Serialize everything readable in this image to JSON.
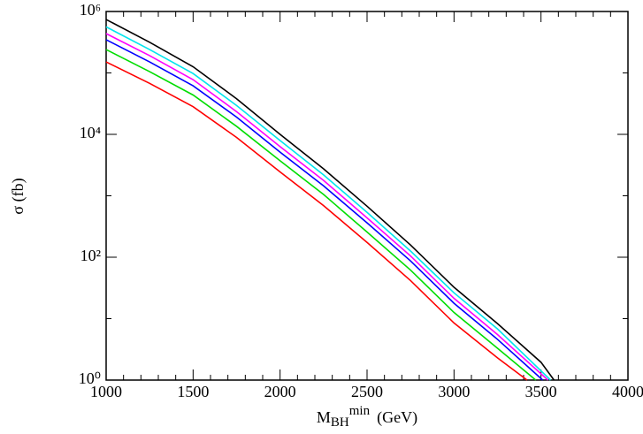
{
  "chart_data": {
    "type": "line",
    "ylabel": "σ (fb)",
    "xlabel": {
      "base": "M",
      "sub": "BH",
      "sup": "min",
      "unit": "(GeV)"
    },
    "xlim": [
      1000,
      4000
    ],
    "xticks": [
      1000,
      1500,
      2000,
      2500,
      3000,
      3500,
      4000
    ],
    "xminorticks": [
      1100,
      1200,
      1300,
      1400,
      1600,
      1700,
      1800,
      1900,
      2100,
      2200,
      2300,
      2400,
      2600,
      2700,
      2800,
      2900,
      3100,
      3200,
      3300,
      3400,
      3600,
      3700,
      3800,
      3900
    ],
    "ylim": [
      1,
      1000000
    ],
    "log_y": true,
    "yticks": [
      {
        "value": 1,
        "label": "10⁰"
      },
      {
        "value": 100,
        "label": "10²"
      },
      {
        "value": 10000,
        "label": "10⁴"
      },
      {
        "value": 1000000,
        "label": "10⁶"
      }
    ],
    "yminorticks": [
      10,
      1000,
      100000
    ],
    "series": [
      {
        "color": "#000000",
        "x": [
          1000,
          1250,
          1500,
          1750,
          2000,
          2250,
          2500,
          2750,
          3000,
          3250,
          3500,
          3575
        ],
        "values": [
          741000,
          316000,
          126000,
          38000,
          10000,
          2750,
          676,
          158,
          32.4,
          8.3,
          1.95,
          1
        ]
      },
      {
        "color": "#00e5ee",
        "x": [
          1000,
          1250,
          1500,
          1750,
          2000,
          2250,
          2500,
          2750,
          3000,
          3250,
          3555
        ],
        "values": [
          562000,
          240000,
          97700,
          29500,
          7940,
          2190,
          537,
          126,
          26.3,
          6.8,
          1
        ]
      },
      {
        "color": "#ff00ff",
        "x": [
          1000,
          1250,
          1500,
          1750,
          2000,
          2250,
          2500,
          2750,
          3000,
          3250,
          3540
        ],
        "values": [
          437000,
          191000,
          77600,
          23400,
          6310,
          1780,
          437,
          105,
          21.4,
          5.5,
          1
        ]
      },
      {
        "color": "#0000ff",
        "x": [
          1000,
          1250,
          1500,
          1750,
          2000,
          2250,
          2500,
          2750,
          3000,
          3250,
          3510
        ],
        "values": [
          347000,
          151000,
          61700,
          19100,
          5130,
          1450,
          363,
          87,
          17.8,
          4.6,
          1
        ]
      },
      {
        "color": "#00dd00",
        "x": [
          1000,
          1250,
          1500,
          1750,
          2000,
          2250,
          2500,
          2750,
          3000,
          3250,
          3470
        ],
        "values": [
          240000,
          105000,
          43700,
          13500,
          3720,
          1050,
          257,
          61.7,
          12.6,
          3.3,
          1
        ]
      },
      {
        "color": "#ff0000",
        "x": [
          1000,
          1250,
          1500,
          1750,
          2000,
          2250,
          2500,
          2750,
          3000,
          3250,
          3420
        ],
        "values": [
          151000,
          67600,
          28200,
          8910,
          2450,
          692,
          174,
          41.7,
          8.5,
          2.3,
          1
        ]
      }
    ]
  }
}
